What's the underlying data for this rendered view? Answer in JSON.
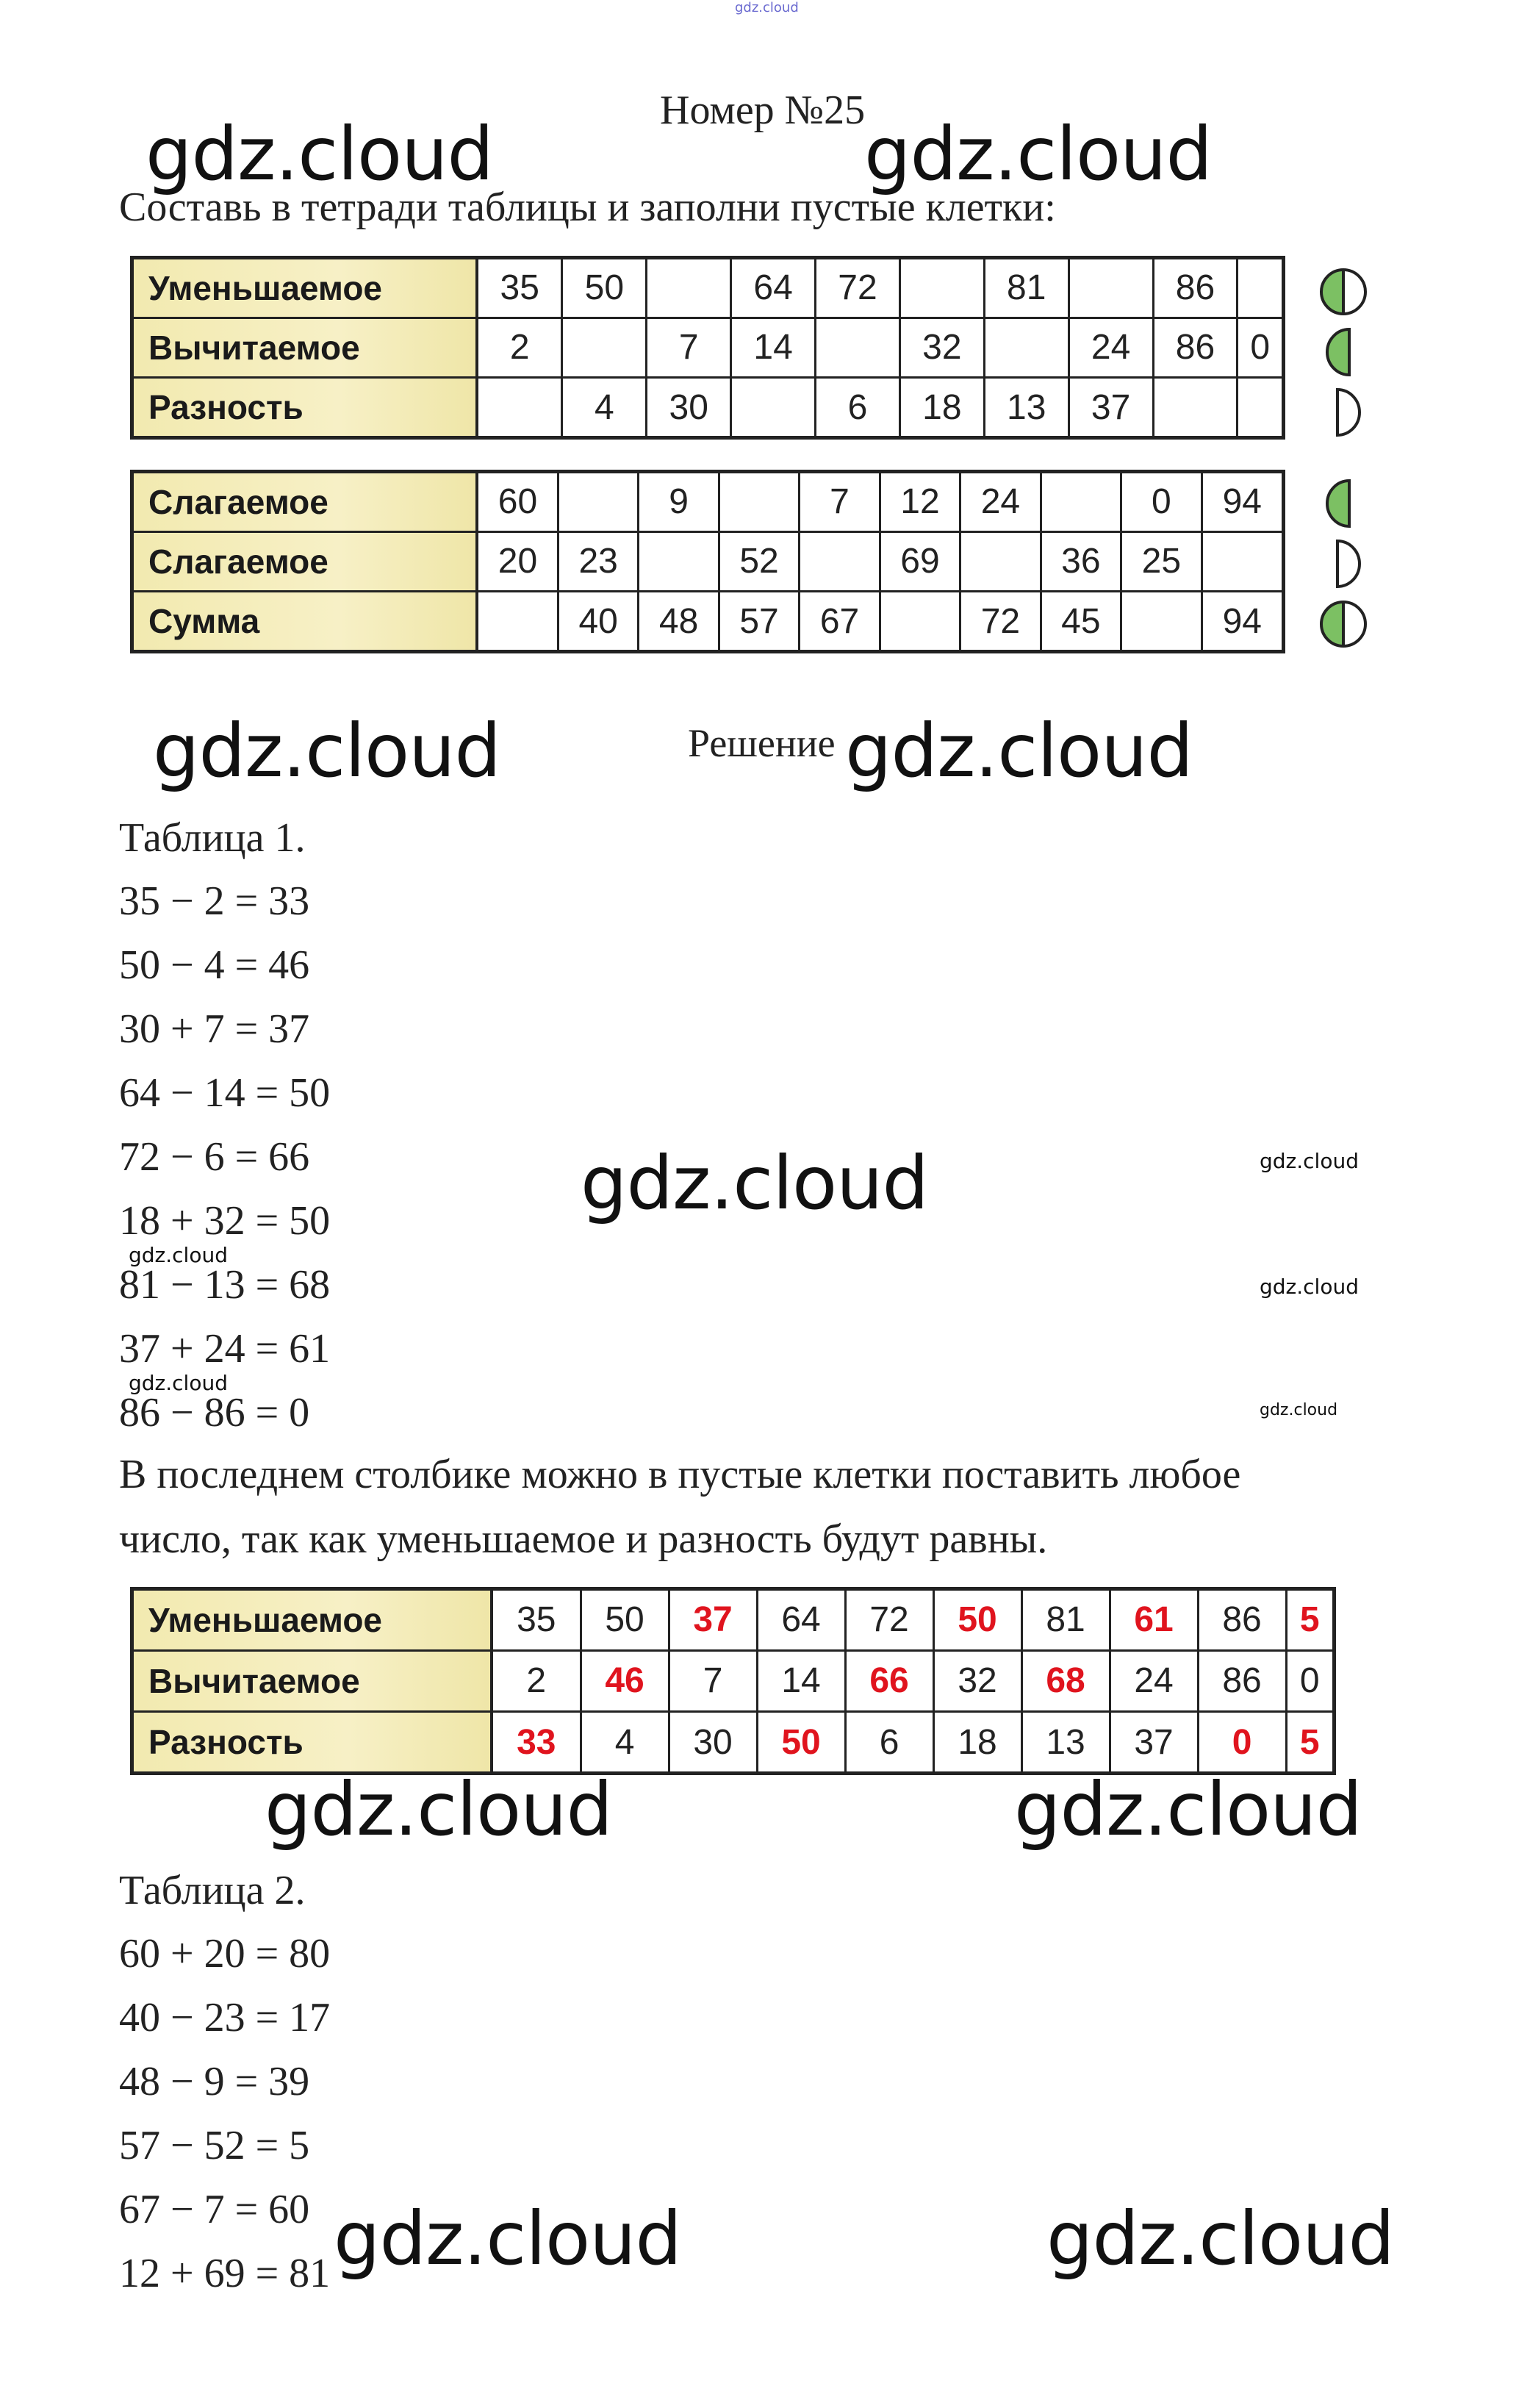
{
  "top_watermark": "gdz.cloud",
  "title": "Номер №25",
  "task": "Составь в тетради таблицы и заполни пустые клетки:",
  "watermark": "gdz.cloud",
  "colors": {
    "green": "#7cc063",
    "red": "#e0141e",
    "label_bg": "#f2eab0"
  },
  "table1": {
    "rows": [
      {
        "label": "Уменьшаемое",
        "cells": [
          "35",
          "50",
          "",
          "64",
          "72",
          "",
          "81",
          "",
          "86",
          ""
        ],
        "icon": "half-moon-full-split"
      },
      {
        "label": "Вычитаемое",
        "cells": [
          "2",
          "",
          "7",
          "14",
          "",
          "32",
          "",
          "24",
          "86",
          "0"
        ],
        "icon": "half-moon-green"
      },
      {
        "label": "Разность",
        "cells": [
          "",
          "4",
          "30",
          "",
          "6",
          "18",
          "13",
          "37",
          "",
          ""
        ],
        "icon": "half-moon-empty"
      }
    ]
  },
  "table2": {
    "rows": [
      {
        "label": "Слагаемое",
        "cells": [
          "60",
          "",
          "9",
          "",
          "7",
          "12",
          "24",
          "",
          "0",
          "94"
        ],
        "icon": "half-moon-green"
      },
      {
        "label": "Слагаемое",
        "cells": [
          "20",
          "23",
          "",
          "52",
          "",
          "69",
          "",
          "36",
          "25",
          ""
        ],
        "icon": "half-moon-empty"
      },
      {
        "label": "Сумма",
        "cells": [
          "",
          "40",
          "48",
          "57",
          "67",
          "",
          "72",
          "45",
          "",
          "94"
        ],
        "icon": "half-moon-full-split"
      }
    ]
  },
  "solution_label": "Решение",
  "table1_heading": "Таблица 1.",
  "table1_equations": [
    "35 − 2 = 33",
    "50 − 4 = 46",
    "30 + 7 = 37",
    "64 − 14 = 50",
    "72 − 6 = 66",
    "18 + 32 = 50",
    "81 − 13 = 68",
    "37 + 24 = 61",
    "86 − 86 = 0"
  ],
  "note_lines": [
    "В последнем столбике можно в пустые клетки поставить любое",
    "число, так как уменьшаемое и разность будут равны."
  ],
  "table3": {
    "rows": [
      {
        "label": "Уменьшаемое",
        "cells": [
          "35",
          "50",
          "37",
          "64",
          "72",
          "50",
          "81",
          "61",
          "86",
          "5"
        ],
        "red": [
          2,
          5,
          7,
          9
        ]
      },
      {
        "label": "Вычитаемое",
        "cells": [
          "2",
          "46",
          "7",
          "14",
          "66",
          "32",
          "68",
          "24",
          "86",
          "0"
        ],
        "red": [
          1,
          4,
          6
        ]
      },
      {
        "label": "Разность",
        "cells": [
          "33",
          "4",
          "30",
          "50",
          "6",
          "18",
          "13",
          "37",
          "0",
          "5"
        ],
        "red": [
          0,
          3,
          8,
          9
        ]
      }
    ]
  },
  "table2_heading": "Таблица 2.",
  "table2_equations": [
    "60 + 20 = 80",
    "40 − 23 = 17",
    "48 − 9 = 39",
    "57 − 52 = 5",
    "67 − 7 = 60",
    "12 + 69 = 81"
  ]
}
